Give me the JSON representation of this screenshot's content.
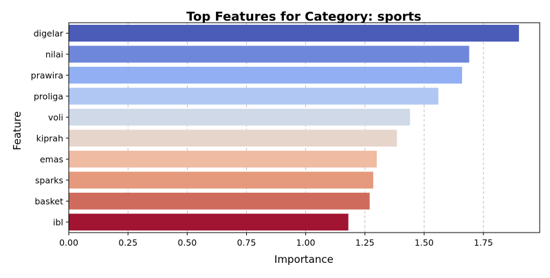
{
  "chart_data": {
    "type": "bar",
    "orientation": "horizontal",
    "title": "Top Features for Category: sports",
    "xlabel": "Importance",
    "ylabel": "Feature",
    "categories": [
      "digelar",
      "nilai",
      "prawira",
      "proliga",
      "voli",
      "kiprah",
      "emas",
      "sparks",
      "basket",
      "ibl"
    ],
    "values": [
      1.9,
      1.69,
      1.66,
      1.56,
      1.44,
      1.385,
      1.3,
      1.285,
      1.27,
      1.18
    ],
    "colors": [
      "#4a5bb8",
      "#6f87db",
      "#91aff2",
      "#b0c7f3",
      "#d0d9e8",
      "#e6d5cb",
      "#efbba3",
      "#e59a7d",
      "#cf6b5d",
      "#a11432"
    ],
    "xlim": [
      0,
      1.9875
    ],
    "xticks": [
      "0.00",
      "0.25",
      "0.50",
      "0.75",
      "1.00",
      "1.25",
      "1.50",
      "1.75"
    ],
    "xtick_values": [
      0,
      0.25,
      0.5,
      0.75,
      1.0,
      1.25,
      1.5,
      1.75
    ],
    "grid": "x-dashed"
  }
}
